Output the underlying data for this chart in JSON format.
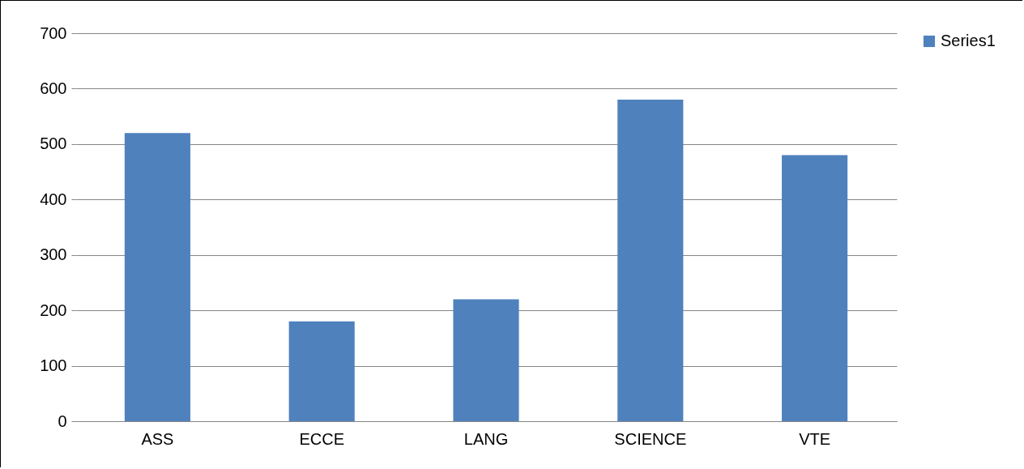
{
  "chart_data": {
    "type": "bar",
    "categories": [
      "ASS",
      "ECCE",
      "LANG",
      "SCIENCE",
      "VTE"
    ],
    "series": [
      {
        "name": "Series1",
        "color": "#4f81bd",
        "values": [
          520,
          180,
          220,
          580,
          480
        ]
      }
    ],
    "ylim": [
      0,
      700
    ],
    "yticks": [
      0,
      100,
      200,
      300,
      400,
      500,
      600,
      700
    ],
    "grid": "y",
    "legend": "right"
  }
}
